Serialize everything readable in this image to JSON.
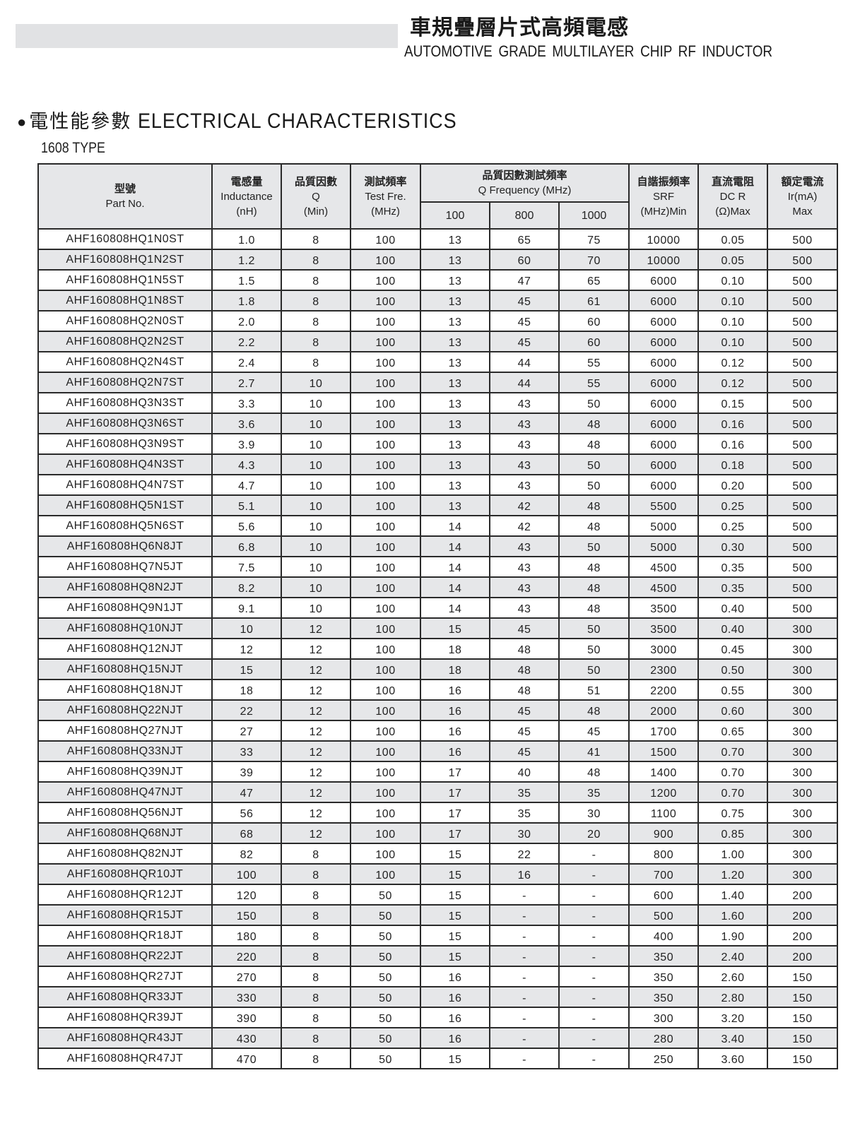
{
  "header": {
    "title_cn": "車規疊層片式高頻電感",
    "title_en": "AUTOMOTIVE GRADE MULTILAYER CHIP RF INDUCTOR"
  },
  "section": {
    "title_cn": "電性能參數",
    "title_en": "ELECTRICAL CHARACTERISTICS",
    "type_label": "1608 TYPE"
  },
  "table": {
    "headers": {
      "part": {
        "cn": "型號",
        "en": "Part No."
      },
      "inductance": {
        "cn": "電感量",
        "en": "Inductance",
        "unit": "(nH)"
      },
      "q": {
        "cn": "品質因數",
        "en": "Q",
        "unit": "(Min)"
      },
      "test_freq": {
        "cn": "測試頻率",
        "en": "Test Fre.",
        "unit": "(MHz)"
      },
      "q_freq": {
        "cn": "品質因數測試頻率",
        "en": "Q Frequency (MHz)",
        "sub": [
          "100",
          "800",
          "1000"
        ]
      },
      "srf": {
        "cn": "自諧振頻率",
        "en": "SRF",
        "unit": "(MHz)Min"
      },
      "dcr": {
        "cn": "直流電阻",
        "en": "DC R",
        "unit": "(Ω)Max"
      },
      "ir": {
        "cn": "額定電流",
        "en": "Ir(mA)",
        "unit": "Max"
      }
    },
    "rows": [
      [
        "AHF160808HQ1N0ST",
        "1.0",
        "8",
        "100",
        "13",
        "65",
        "75",
        "10000",
        "0.05",
        "500"
      ],
      [
        "AHF160808HQ1N2ST",
        "1.2",
        "8",
        "100",
        "13",
        "60",
        "70",
        "10000",
        "0.05",
        "500"
      ],
      [
        "AHF160808HQ1N5ST",
        "1.5",
        "8",
        "100",
        "13",
        "47",
        "65",
        "6000",
        "0.10",
        "500"
      ],
      [
        "AHF160808HQ1N8ST",
        "1.8",
        "8",
        "100",
        "13",
        "45",
        "61",
        "6000",
        "0.10",
        "500"
      ],
      [
        "AHF160808HQ2N0ST",
        "2.0",
        "8",
        "100",
        "13",
        "45",
        "60",
        "6000",
        "0.10",
        "500"
      ],
      [
        "AHF160808HQ2N2ST",
        "2.2",
        "8",
        "100",
        "13",
        "45",
        "60",
        "6000",
        "0.10",
        "500"
      ],
      [
        "AHF160808HQ2N4ST",
        "2.4",
        "8",
        "100",
        "13",
        "44",
        "55",
        "6000",
        "0.12",
        "500"
      ],
      [
        "AHF160808HQ2N7ST",
        "2.7",
        "10",
        "100",
        "13",
        "44",
        "55",
        "6000",
        "0.12",
        "500"
      ],
      [
        "AHF160808HQ3N3ST",
        "3.3",
        "10",
        "100",
        "13",
        "43",
        "50",
        "6000",
        "0.15",
        "500"
      ],
      [
        "AHF160808HQ3N6ST",
        "3.6",
        "10",
        "100",
        "13",
        "43",
        "48",
        "6000",
        "0.16",
        "500"
      ],
      [
        "AHF160808HQ3N9ST",
        "3.9",
        "10",
        "100",
        "13",
        "43",
        "48",
        "6000",
        "0.16",
        "500"
      ],
      [
        "AHF160808HQ4N3ST",
        "4.3",
        "10",
        "100",
        "13",
        "43",
        "50",
        "6000",
        "0.18",
        "500"
      ],
      [
        "AHF160808HQ4N7ST",
        "4.7",
        "10",
        "100",
        "13",
        "43",
        "50",
        "6000",
        "0.20",
        "500"
      ],
      [
        "AHF160808HQ5N1ST",
        "5.1",
        "10",
        "100",
        "13",
        "42",
        "48",
        "5500",
        "0.25",
        "500"
      ],
      [
        "AHF160808HQ5N6ST",
        "5.6",
        "10",
        "100",
        "14",
        "42",
        "48",
        "5000",
        "0.25",
        "500"
      ],
      [
        "AHF160808HQ6N8JT",
        "6.8",
        "10",
        "100",
        "14",
        "43",
        "50",
        "5000",
        "0.30",
        "500"
      ],
      [
        "AHF160808HQ7N5JT",
        "7.5",
        "10",
        "100",
        "14",
        "43",
        "48",
        "4500",
        "0.35",
        "500"
      ],
      [
        "AHF160808HQ8N2JT",
        "8.2",
        "10",
        "100",
        "14",
        "43",
        "48",
        "4500",
        "0.35",
        "500"
      ],
      [
        "AHF160808HQ9N1JT",
        "9.1",
        "10",
        "100",
        "14",
        "43",
        "48",
        "3500",
        "0.40",
        "500"
      ],
      [
        "AHF160808HQ10NJT",
        "10",
        "12",
        "100",
        "15",
        "45",
        "50",
        "3500",
        "0.40",
        "300"
      ],
      [
        "AHF160808HQ12NJT",
        "12",
        "12",
        "100",
        "18",
        "48",
        "50",
        "3000",
        "0.45",
        "300"
      ],
      [
        "AHF160808HQ15NJT",
        "15",
        "12",
        "100",
        "18",
        "48",
        "50",
        "2300",
        "0.50",
        "300"
      ],
      [
        "AHF160808HQ18NJT",
        "18",
        "12",
        "100",
        "16",
        "48",
        "51",
        "2200",
        "0.55",
        "300"
      ],
      [
        "AHF160808HQ22NJT",
        "22",
        "12",
        "100",
        "16",
        "45",
        "48",
        "2000",
        "0.60",
        "300"
      ],
      [
        "AHF160808HQ27NJT",
        "27",
        "12",
        "100",
        "16",
        "45",
        "45",
        "1700",
        "0.65",
        "300"
      ],
      [
        "AHF160808HQ33NJT",
        "33",
        "12",
        "100",
        "16",
        "45",
        "41",
        "1500",
        "0.70",
        "300"
      ],
      [
        "AHF160808HQ39NJT",
        "39",
        "12",
        "100",
        "17",
        "40",
        "48",
        "1400",
        "0.70",
        "300"
      ],
      [
        "AHF160808HQ47NJT",
        "47",
        "12",
        "100",
        "17",
        "35",
        "35",
        "1200",
        "0.70",
        "300"
      ],
      [
        "AHF160808HQ56NJT",
        "56",
        "12",
        "100",
        "17",
        "35",
        "30",
        "1100",
        "0.75",
        "300"
      ],
      [
        "AHF160808HQ68NJT",
        "68",
        "12",
        "100",
        "17",
        "30",
        "20",
        "900",
        "0.85",
        "300"
      ],
      [
        "AHF160808HQ82NJT",
        "82",
        "8",
        "100",
        "15",
        "22",
        "-",
        "800",
        "1.00",
        "300"
      ],
      [
        "AHF160808HQR10JT",
        "100",
        "8",
        "100",
        "15",
        "16",
        "-",
        "700",
        "1.20",
        "300"
      ],
      [
        "AHF160808HQR12JT",
        "120",
        "8",
        "50",
        "15",
        "-",
        "-",
        "600",
        "1.40",
        "200"
      ],
      [
        "AHF160808HQR15JT",
        "150",
        "8",
        "50",
        "15",
        "-",
        "-",
        "500",
        "1.60",
        "200"
      ],
      [
        "AHF160808HQR18JT",
        "180",
        "8",
        "50",
        "15",
        "-",
        "-",
        "400",
        "1.90",
        "200"
      ],
      [
        "AHF160808HQR22JT",
        "220",
        "8",
        "50",
        "15",
        "-",
        "-",
        "350",
        "2.40",
        "200"
      ],
      [
        "AHF160808HQR27JT",
        "270",
        "8",
        "50",
        "16",
        "-",
        "-",
        "350",
        "2.60",
        "150"
      ],
      [
        "AHF160808HQR33JT",
        "330",
        "8",
        "50",
        "16",
        "-",
        "-",
        "350",
        "2.80",
        "150"
      ],
      [
        "AHF160808HQR39JT",
        "390",
        "8",
        "50",
        "16",
        "-",
        "-",
        "300",
        "3.20",
        "150"
      ],
      [
        "AHF160808HQR43JT",
        "430",
        "8",
        "50",
        "16",
        "-",
        "-",
        "280",
        "3.40",
        "150"
      ],
      [
        "AHF160808HQR47JT",
        "470",
        "8",
        "50",
        "15",
        "-",
        "-",
        "250",
        "3.60",
        "150"
      ]
    ]
  },
  "colors": {
    "header_bg": "#e6e7e9",
    "shade_row": "#e6e7e9",
    "border": "#2a2a2a",
    "top_bar": "#e1e2e4"
  }
}
